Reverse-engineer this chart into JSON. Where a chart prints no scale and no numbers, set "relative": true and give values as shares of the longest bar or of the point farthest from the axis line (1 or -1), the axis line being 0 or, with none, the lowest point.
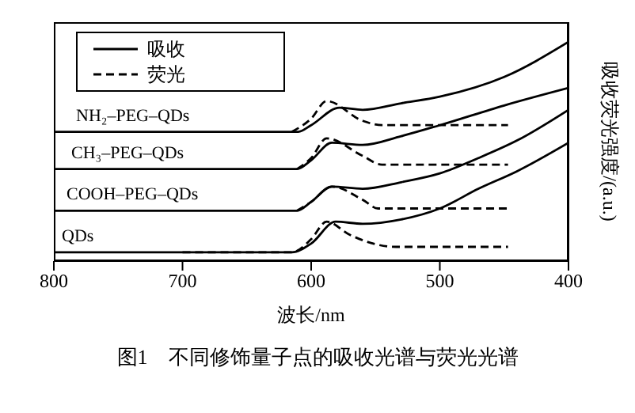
{
  "chart_data": {
    "type": "line",
    "relative": true,
    "xlabel": "波长/nm",
    "ylabel": "吸收荧光强度/(a.u.)",
    "xlim": [
      800,
      400
    ],
    "xticks": [
      800,
      700,
      600,
      500,
      400
    ],
    "legend": "top left",
    "grid": false,
    "marker": "none",
    "series": [
      {
        "name": "吸收",
        "color": "#000000",
        "line_style": "solid",
        "x": [
          800,
          700,
          615,
          600,
          581,
          560,
          530,
          500,
          470,
          440,
          400
        ],
        "values": [
          0.04,
          0.04,
          0.04,
          0.08,
          0.18,
          0.17,
          0.19,
          0.24,
          0.33,
          0.41,
          0.54
        ]
      },
      {
        "name": "荧光",
        "color": "#000000",
        "line_style": "dashed",
        "x": [
          700,
          615,
          600,
          588,
          570,
          534,
          447
        ],
        "values": [
          0.04,
          0.04,
          0.1,
          0.18,
          0.12,
          0.065,
          0.065
        ]
      },
      {
        "color": "#000000",
        "line_style": "solid",
        "x": [
          800,
          700,
          611,
          600,
          584,
          560,
          530,
          500,
          470,
          440,
          400
        ],
        "values": [
          0.23,
          0.23,
          0.23,
          0.27,
          0.34,
          0.33,
          0.36,
          0.4,
          0.47,
          0.55,
          0.69
        ]
      },
      {
        "color": "#000000",
        "line_style": "dashed",
        "x": [
          611,
          600,
          584,
          560,
          548,
          447
        ],
        "values": [
          0.23,
          0.27,
          0.34,
          0.28,
          0.24,
          0.24
        ]
      },
      {
        "color": "#000000",
        "line_style": "solid",
        "x": [
          800,
          700,
          611,
          600,
          584,
          560,
          530,
          500,
          450,
          400
        ],
        "values": [
          0.42,
          0.42,
          0.42,
          0.46,
          0.54,
          0.53,
          0.57,
          0.62,
          0.71,
          0.79
        ]
      },
      {
        "color": "#000000",
        "line_style": "dashed",
        "x": [
          611,
          600,
          588,
          560,
          545,
          447
        ],
        "values": [
          0.42,
          0.47,
          0.56,
          0.48,
          0.44,
          0.44
        ]
      },
      {
        "color": "#000000",
        "line_style": "solid",
        "x": [
          800,
          700,
          610,
          600,
          578,
          560,
          530,
          500,
          450,
          400
        ],
        "values": [
          0.59,
          0.59,
          0.59,
          0.62,
          0.7,
          0.69,
          0.72,
          0.75,
          0.84,
          1
        ]
      },
      {
        "color": "#000000",
        "line_style": "dashed",
        "x": [
          615,
          600,
          588,
          560,
          545,
          447
        ],
        "values": [
          0.59,
          0.65,
          0.73,
          0.64,
          0.62,
          0.62
        ]
      }
    ],
    "annotations": [
      "NH₂–PEG–QDs",
      "CH₃–PEG–QDs",
      "COOH–PEG–QDs",
      "QDs",
      "图1　不同修饰量子点的吸收光谱与荧光光谱"
    ]
  }
}
